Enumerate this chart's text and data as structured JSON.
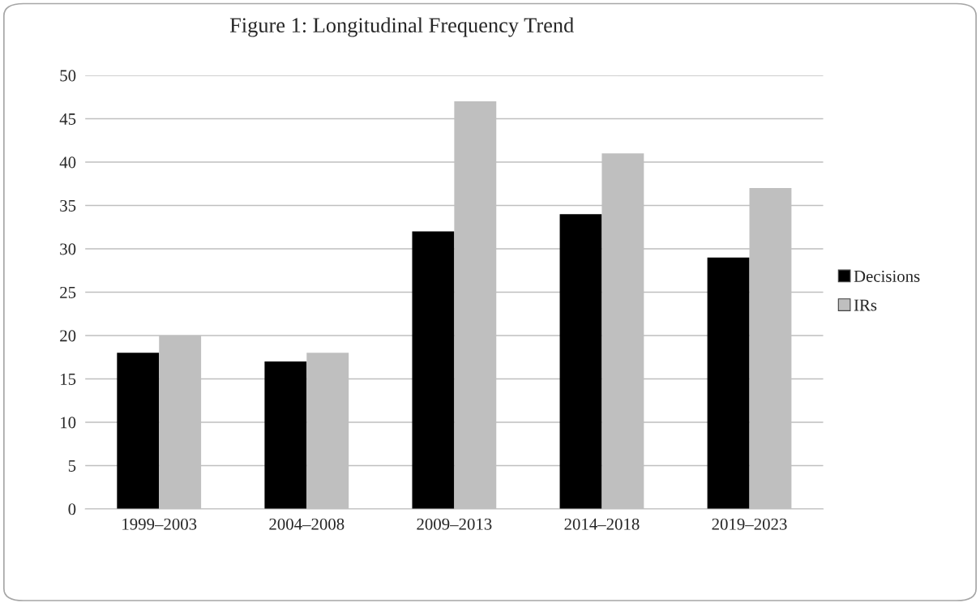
{
  "chart_data": {
    "type": "bar",
    "title": "Figure 1: Longitudinal Frequency Trend",
    "categories": [
      "1999–2003",
      "2004–2008",
      "2009–2013",
      "2014–2018",
      "2019–2023"
    ],
    "series": [
      {
        "name": "Decisions",
        "color": "#000000",
        "values": [
          18,
          17,
          32,
          34,
          29
        ]
      },
      {
        "name": "IRs",
        "color": "#bfbfbf",
        "values": [
          20,
          18,
          47,
          41,
          37
        ]
      }
    ],
    "ylim": [
      0,
      50
    ],
    "yticks": [
      0,
      5,
      10,
      15,
      20,
      25,
      30,
      35,
      40,
      45,
      50
    ],
    "grid": "y",
    "legend": "right"
  }
}
